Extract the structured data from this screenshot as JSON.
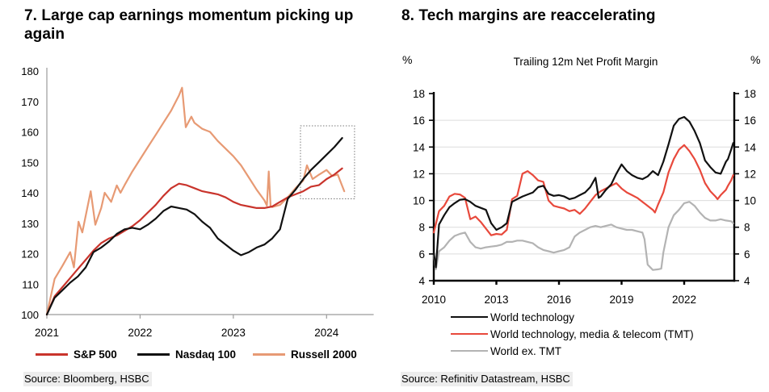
{
  "chart_data": [
    {
      "panel_title": "7. Large cap earnings momentum picking up again",
      "source": "Source: Bloomberg, HSBC",
      "type": "line",
      "xlim": [
        2021.0,
        2024.5
      ],
      "ylim": [
        100,
        180
      ],
      "x_ticks": [
        2021,
        2022,
        2023,
        2024
      ],
      "y_ticks": [
        100,
        110,
        120,
        130,
        140,
        150,
        160,
        170,
        180
      ],
      "grid": false,
      "legend_position": "bottom",
      "annotation_box": {
        "x0": 2023.72,
        "x1": 2024.3,
        "y0": 138,
        "y1": 162,
        "note": "dotted highlight of recent momentum"
      },
      "series": [
        {
          "name": "S&P 500",
          "color": "#c9342c",
          "z": 1,
          "x": [
            2021.0,
            2021.083,
            2021.167,
            2021.25,
            2021.333,
            2021.417,
            2021.5,
            2021.583,
            2021.667,
            2021.75,
            2021.833,
            2021.917,
            2022.0,
            2022.083,
            2022.167,
            2022.25,
            2022.333,
            2022.417,
            2022.5,
            2022.583,
            2022.667,
            2022.75,
            2022.833,
            2022.917,
            2023.0,
            2023.083,
            2023.167,
            2023.25,
            2023.333,
            2023.417,
            2023.5,
            2023.583,
            2023.667,
            2023.75,
            2023.833,
            2023.917,
            2024.0,
            2024.083,
            2024.167
          ],
          "values": [
            100,
            106,
            109,
            112,
            115,
            118,
            121,
            123.5,
            125,
            126,
            127.5,
            129,
            131,
            133.5,
            136,
            139,
            141.5,
            143,
            142.5,
            141.5,
            140.5,
            140,
            139.5,
            138.5,
            137,
            136,
            135.5,
            135,
            135,
            135.5,
            137,
            138.5,
            139.5,
            140.5,
            142,
            142.5,
            144.5,
            146,
            148
          ]
        },
        {
          "name": "Nasdaq 100",
          "color": "#111111",
          "z": 2,
          "x": [
            2021.0,
            2021.083,
            2021.167,
            2021.25,
            2021.333,
            2021.417,
            2021.5,
            2021.583,
            2021.667,
            2021.75,
            2021.833,
            2021.917,
            2022.0,
            2022.083,
            2022.167,
            2022.25,
            2022.333,
            2022.417,
            2022.5,
            2022.583,
            2022.667,
            2022.75,
            2022.833,
            2022.917,
            2023.0,
            2023.083,
            2023.167,
            2023.25,
            2023.333,
            2023.417,
            2023.5,
            2023.583,
            2023.667,
            2023.75,
            2023.833,
            2023.917,
            2024.0,
            2024.083,
            2024.167
          ],
          "values": [
            100,
            105.5,
            108,
            110.5,
            112.5,
            115.5,
            120.5,
            122,
            124,
            126.5,
            128,
            128.5,
            128,
            129.5,
            131.5,
            134,
            135.5,
            135,
            134.5,
            133,
            130.5,
            128.5,
            125,
            123,
            121,
            119.5,
            120.5,
            122,
            123,
            125,
            128,
            138,
            141,
            144.5,
            147.5,
            150,
            152.5,
            155,
            158
          ]
        },
        {
          "name": "Russell 2000",
          "color": "#e79a74",
          "z": 0,
          "x": [
            2021.0,
            2021.083,
            2021.167,
            2021.25,
            2021.29,
            2021.34,
            2021.38,
            2021.47,
            2021.52,
            2021.583,
            2021.62,
            2021.69,
            2021.75,
            2021.79,
            2021.833,
            2021.917,
            2022.0,
            2022.083,
            2022.167,
            2022.25,
            2022.333,
            2022.417,
            2022.45,
            2022.49,
            2022.55,
            2022.583,
            2022.667,
            2022.75,
            2022.833,
            2022.917,
            2023.0,
            2023.083,
            2023.167,
            2023.25,
            2023.333,
            2023.36,
            2023.38,
            2023.4,
            2023.417,
            2023.5,
            2023.583,
            2023.667,
            2023.75,
            2023.79,
            2023.85,
            2023.92,
            2024.0,
            2024.06,
            2024.12,
            2024.19
          ],
          "values": [
            100,
            111.7,
            116,
            120.5,
            115.5,
            130.5,
            127,
            140.5,
            129.5,
            135,
            140,
            137,
            142.4,
            140,
            142.5,
            147,
            151,
            155,
            159,
            163,
            167,
            172,
            174.5,
            161.5,
            165,
            163,
            161,
            160,
            157,
            154.5,
            152,
            149,
            145,
            141,
            137.5,
            135.8,
            147,
            135.5,
            135.3,
            136,
            138.5,
            141.5,
            144,
            149,
            144.5,
            146,
            147.5,
            145.5,
            146,
            140.5
          ]
        }
      ]
    },
    {
      "panel_title": "8. Tech margins are reaccelerating",
      "inner_title": "Trailing 12m Net Profit Margin",
      "axis_unit_left": "%",
      "axis_unit_right": "%",
      "source": "Source: Refinitiv Datastream, HSBC",
      "type": "line",
      "xlim": [
        2010.0,
        2024.4
      ],
      "ylim": [
        4,
        18
      ],
      "x_ticks": [
        2010,
        2013,
        2016,
        2019,
        2022
      ],
      "y_ticks": [
        4,
        6,
        8,
        10,
        12,
        14,
        16,
        18
      ],
      "grid": true,
      "legend_position": "bottom",
      "series": [
        {
          "name": "World technology",
          "color": "#111111",
          "z": 2,
          "x": [
            2010.0,
            2010.1,
            2010.25,
            2010.5,
            2010.75,
            2011.0,
            2011.25,
            2011.5,
            2011.75,
            2012.0,
            2012.25,
            2012.5,
            2012.75,
            2013.0,
            2013.25,
            2013.5,
            2013.75,
            2014.0,
            2014.25,
            2014.5,
            2014.75,
            2015.0,
            2015.25,
            2015.5,
            2015.75,
            2016.0,
            2016.25,
            2016.5,
            2016.75,
            2017.0,
            2017.25,
            2017.5,
            2017.75,
            2017.9,
            2018.0,
            2018.25,
            2018.5,
            2018.75,
            2019.0,
            2019.25,
            2019.5,
            2019.75,
            2020.0,
            2020.25,
            2020.5,
            2020.75,
            2021.0,
            2021.25,
            2021.5,
            2021.75,
            2022.0,
            2022.25,
            2022.5,
            2022.75,
            2023.0,
            2023.25,
            2023.5,
            2023.75,
            2024.0,
            2024.1,
            2024.25,
            2024.35
          ],
          "values": [
            6.1,
            5.0,
            8.2,
            8.9,
            9.5,
            9.8,
            10.05,
            10.1,
            9.9,
            9.6,
            9.45,
            9.3,
            8.3,
            7.8,
            8.0,
            8.3,
            9.9,
            10.1,
            10.3,
            10.45,
            10.6,
            11.0,
            11.1,
            10.5,
            10.35,
            10.4,
            10.3,
            10.1,
            10.2,
            10.4,
            10.6,
            11.0,
            11.7,
            10.2,
            10.3,
            10.8,
            11.2,
            12.0,
            12.7,
            12.2,
            11.9,
            11.7,
            11.6,
            11.8,
            12.2,
            11.9,
            12.9,
            14.2,
            15.6,
            16.1,
            16.25,
            15.9,
            15.2,
            14.3,
            13.0,
            12.5,
            12.1,
            12.0,
            12.9,
            13.1,
            13.8,
            14.3
          ]
        },
        {
          "name": "World technology, media & telecom (TMT)",
          "color": "#e8493c",
          "z": 1,
          "x": [
            2010.0,
            2010.25,
            2010.5,
            2010.75,
            2011.0,
            2011.25,
            2011.5,
            2011.75,
            2012.0,
            2012.25,
            2012.5,
            2012.75,
            2013.0,
            2013.25,
            2013.5,
            2013.75,
            2014.0,
            2014.25,
            2014.5,
            2014.75,
            2015.0,
            2015.25,
            2015.5,
            2015.75,
            2016.0,
            2016.25,
            2016.5,
            2016.75,
            2017.0,
            2017.25,
            2017.5,
            2017.75,
            2018.0,
            2018.25,
            2018.5,
            2018.75,
            2019.0,
            2019.25,
            2019.5,
            2019.75,
            2020.0,
            2020.25,
            2020.5,
            2020.6,
            2020.75,
            2021.0,
            2021.25,
            2021.5,
            2021.75,
            2022.0,
            2022.25,
            2022.5,
            2022.75,
            2023.0,
            2023.25,
            2023.5,
            2023.6,
            2023.75,
            2024.0,
            2024.1,
            2024.25,
            2024.35
          ],
          "values": [
            7.6,
            9.2,
            9.6,
            10.3,
            10.5,
            10.45,
            10.2,
            8.6,
            8.8,
            8.4,
            7.9,
            7.4,
            7.5,
            7.45,
            7.8,
            10.1,
            10.35,
            12.0,
            12.2,
            11.9,
            11.5,
            11.4,
            10.0,
            9.6,
            9.5,
            9.4,
            9.2,
            9.3,
            9.0,
            9.4,
            9.9,
            10.4,
            10.7,
            10.9,
            11.1,
            11.3,
            10.9,
            10.6,
            10.4,
            10.2,
            9.9,
            9.6,
            9.3,
            9.1,
            9.7,
            10.6,
            12.1,
            13.1,
            13.8,
            14.15,
            13.7,
            13.1,
            12.3,
            11.3,
            10.7,
            10.3,
            10.1,
            10.4,
            10.8,
            11.1,
            11.5,
            11.9
          ]
        },
        {
          "name": "World ex. TMT",
          "color": "#b3b3b3",
          "z": 0,
          "x": [
            2010.0,
            2010.1,
            2010.25,
            2010.5,
            2010.75,
            2011.0,
            2011.25,
            2011.5,
            2011.75,
            2012.0,
            2012.25,
            2012.5,
            2012.75,
            2013.0,
            2013.25,
            2013.5,
            2013.75,
            2014.0,
            2014.25,
            2014.5,
            2014.75,
            2015.0,
            2015.25,
            2015.5,
            2015.75,
            2016.0,
            2016.25,
            2016.5,
            2016.75,
            2017.0,
            2017.25,
            2017.5,
            2017.75,
            2018.0,
            2018.25,
            2018.5,
            2018.75,
            2019.0,
            2019.25,
            2019.5,
            2019.75,
            2020.0,
            2020.1,
            2020.25,
            2020.5,
            2020.75,
            2020.9,
            2021.0,
            2021.25,
            2021.5,
            2021.75,
            2022.0,
            2022.25,
            2022.5,
            2022.75,
            2023.0,
            2023.25,
            2023.5,
            2023.75,
            2024.0,
            2024.25,
            2024.35
          ],
          "values": [
            5.9,
            4.85,
            6.2,
            6.5,
            7.0,
            7.35,
            7.5,
            7.6,
            6.9,
            6.5,
            6.4,
            6.5,
            6.55,
            6.6,
            6.7,
            6.9,
            6.9,
            7.0,
            7.0,
            6.9,
            6.8,
            6.5,
            6.3,
            6.2,
            6.1,
            6.2,
            6.3,
            6.5,
            7.3,
            7.6,
            7.8,
            8.0,
            8.1,
            8.0,
            8.1,
            8.2,
            8.0,
            7.9,
            7.8,
            7.8,
            7.7,
            7.6,
            7.1,
            5.2,
            4.8,
            4.85,
            4.9,
            6.1,
            8.0,
            8.9,
            9.3,
            9.8,
            9.9,
            9.6,
            9.1,
            8.7,
            8.5,
            8.5,
            8.6,
            8.5,
            8.45,
            8.3
          ]
        }
      ]
    }
  ]
}
